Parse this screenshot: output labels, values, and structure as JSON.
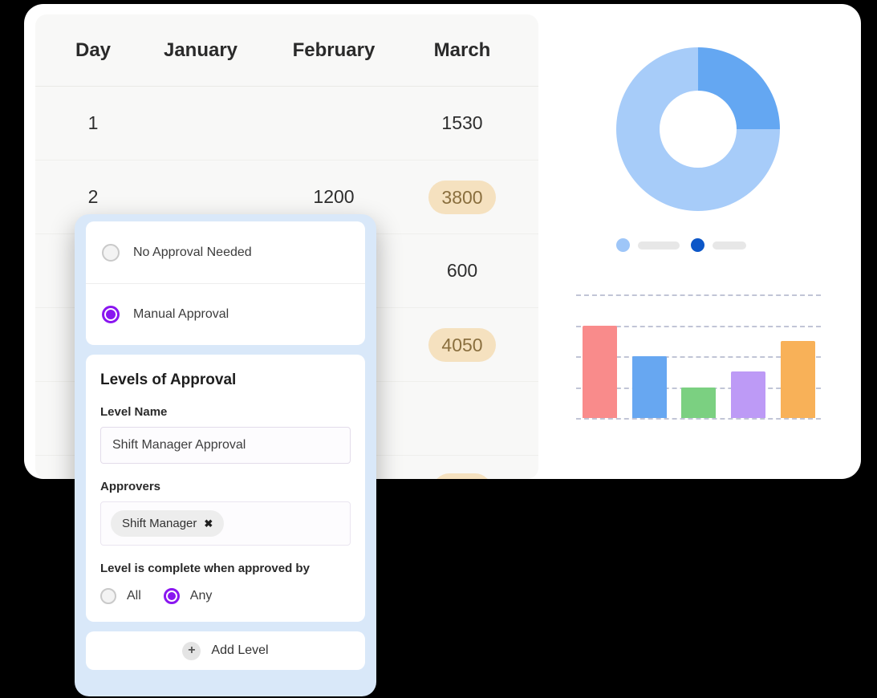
{
  "table": {
    "columns": [
      {
        "label": "Day"
      },
      {
        "label": "January"
      },
      {
        "label": "February"
      },
      {
        "label": "March"
      }
    ],
    "rows": [
      {
        "day": "1",
        "january": "",
        "february": "",
        "march": "1530",
        "march_highlight": false
      },
      {
        "day": "2",
        "january": "",
        "february": "1200",
        "march": "3800",
        "march_highlight": true
      },
      {
        "day": "",
        "january": "",
        "february": "",
        "march": "600",
        "march_highlight": false
      },
      {
        "day": "",
        "january": "",
        "february": "",
        "march": "4050",
        "march_highlight": true
      },
      {
        "day": "",
        "january": "",
        "february": "",
        "march": "",
        "march_highlight": false
      },
      {
        "day": "",
        "january": "",
        "february": "",
        "march": "",
        "march_highlight": true
      }
    ],
    "highlight_bg": "#f5e1bf",
    "highlight_text": "#8a6f3e"
  },
  "approval_modal": {
    "background_color": "#d9e8f9",
    "accent_color": "#8a16f0",
    "type_options": [
      {
        "label": "No Approval Needed",
        "selected": false
      },
      {
        "label": "Manual Approval",
        "selected": true
      }
    ],
    "levels_section": {
      "heading": "Levels of Approval",
      "level_name": {
        "label": "Level Name",
        "value": "Shift Manager Approval"
      },
      "approvers": {
        "label": "Approvers",
        "tags": [
          {
            "label": "Shift Manager",
            "remove_icon": "✖"
          }
        ]
      },
      "completion": {
        "label": "Level is complete when approved by",
        "options": [
          {
            "label": "All",
            "selected": false
          },
          {
            "label": "Any",
            "selected": true
          }
        ]
      }
    },
    "add_level": {
      "label": "Add Level",
      "icon": "+"
    }
  },
  "chart_data": [
    {
      "type": "pie",
      "subtype": "donut",
      "title": "",
      "values": [
        25,
        75
      ],
      "colors": [
        "#64a7f2",
        "#a7ccf9"
      ],
      "legend_position": "bottom",
      "legend_labels_placeholder": true,
      "legend_dot_colors": [
        "#9ec6f8",
        "#0d57c8"
      ]
    },
    {
      "type": "bar",
      "title": "",
      "categories": [
        "",
        "",
        "",
        "",
        ""
      ],
      "values": [
        3,
        2,
        1,
        1.5,
        2.5
      ],
      "colors": [
        "#f98b8b",
        "#67a7f1",
        "#7bd081",
        "#bd9af6",
        "#f8b158"
      ],
      "ylim": [
        0,
        4
      ],
      "gridlines": [
        0,
        1,
        2,
        3,
        4
      ],
      "grid_style": "dashed",
      "grid_color": "#c1c5d6",
      "xlabel": "",
      "ylabel": ""
    }
  ]
}
